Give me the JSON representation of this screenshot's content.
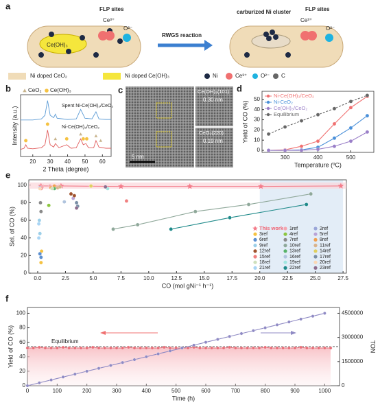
{
  "panel_labels": [
    "a",
    "b",
    "c",
    "d",
    "e",
    "f"
  ],
  "schematic": {
    "flp_left": "FLP sites",
    "ce_left": "Ce³⁺",
    "o_left": "O²⁻",
    "ceoh": "Ce(OH)₃",
    "reaction": "RWGS reaction",
    "cluster": "carburized Ni cluster",
    "flp_right": "FLP sites",
    "ce_right": "Ce³⁺",
    "o_right": "O²⁻",
    "legend": [
      "Ni doped CeO₂",
      "Ni doped Ce(OH)₃",
      "Ni",
      "Ce³⁺",
      "O²⁻",
      "C"
    ]
  },
  "tem": {
    "fringe1": "Ce(OH)₃(101)",
    "d1": "0.30 nm",
    "fringe2": "CeO₂(220)",
    "d2": "0.19 nm",
    "scale": "5 nm"
  },
  "chart_data": [
    {
      "type": "line",
      "x_label": "2 Theta (degree)",
      "y_label": "Intensity (a.u.)",
      "xlim": [
        13,
        65
      ],
      "ylim": [
        0,
        1.05
      ],
      "xticks": [
        20,
        30,
        40,
        50,
        60
      ],
      "series": [
        {
          "name": "Spent Ni-Ce(OH)₃/CeO₂",
          "color": "#5b9bd5",
          "marker": "none",
          "connect": true,
          "x": [
            13,
            20,
            25,
            27,
            28.5,
            30,
            32,
            33,
            34,
            40,
            45,
            47.5,
            50,
            54,
            56.3,
            58,
            62,
            65
          ],
          "values": [
            0.62,
            0.62,
            0.64,
            0.7,
            0.95,
            0.7,
            0.66,
            0.72,
            0.65,
            0.63,
            0.64,
            0.8,
            0.65,
            0.64,
            0.76,
            0.64,
            0.63,
            0.63
          ]
        },
        {
          "name": "Ni-Ce(OH)₃/CeO₂",
          "color": "#e05a5a",
          "marker": "none",
          "connect": true,
          "x": [
            13,
            15,
            16,
            17,
            20,
            25,
            27,
            28.5,
            30,
            32,
            33,
            35,
            39.5,
            42,
            45,
            47.5,
            49,
            50.5,
            52,
            55,
            56.3,
            58,
            62,
            65
          ],
          "values": [
            0.12,
            0.14,
            0.2,
            0.14,
            0.13,
            0.15,
            0.2,
            0.45,
            0.2,
            0.16,
            0.22,
            0.15,
            0.2,
            0.14,
            0.15,
            0.3,
            0.2,
            0.22,
            0.15,
            0.15,
            0.27,
            0.16,
            0.14,
            0.14
          ]
        },
        {
          "name": "CeO₂",
          "color": "#c8b48c",
          "marker": "triangle",
          "connect": false,
          "x": [
            33,
            47.5,
            56.3,
            59
          ],
          "values": [
            0.3,
            0.38,
            0.35,
            0.27
          ]
        },
        {
          "name": "Ce(OH)₃",
          "color": "#f5c242",
          "marker": "circle",
          "connect": false,
          "x": [
            16,
            28.5,
            39.5,
            49,
            51
          ],
          "values": [
            0.27,
            0.55,
            0.3,
            0.3,
            0.3
          ]
        }
      ]
    },
    {
      "type": "line",
      "x_label": "Temperature (ºC)",
      "y_label": "Yield of CO (%)",
      "xlim": [
        230,
        570
      ],
      "ylim": [
        -2,
        58
      ],
      "xticks": [
        300,
        400,
        500
      ],
      "yticks": [
        0,
        10,
        20,
        30,
        40,
        50
      ],
      "series": [
        {
          "name": "Ni-Ce(OH)₃/CeO₂",
          "color": "#f07070",
          "marker": "circle",
          "connect": true,
          "x": [
            250,
            300,
            350,
            400,
            450,
            500,
            550
          ],
          "values": [
            0,
            0.5,
            4,
            9,
            26,
            42,
            53
          ]
        },
        {
          "name": "Ni-CeO₂",
          "color": "#4a90d9",
          "marker": "circle",
          "connect": true,
          "x": [
            250,
            300,
            350,
            400,
            450,
            500,
            550
          ],
          "values": [
            0,
            0,
            0.5,
            3,
            12,
            22,
            34
          ]
        },
        {
          "name": "Ce(OH)₃/CeO₂",
          "color": "#9a7fc8",
          "marker": "circle",
          "connect": true,
          "x": [
            250,
            300,
            350,
            400,
            450,
            500,
            550
          ],
          "values": [
            0,
            0,
            0,
            1,
            4,
            9,
            18
          ]
        },
        {
          "name": "Equilibrium",
          "color": "#666666",
          "marker": "circle",
          "connect": true,
          "dashed": true,
          "x": [
            250,
            300,
            350,
            400,
            450,
            500,
            550
          ],
          "values": [
            16,
            23,
            29,
            35,
            41,
            48,
            54
          ]
        }
      ]
    },
    {
      "type": "scatter",
      "x_label": "CO (mol gNi⁻¹ h⁻¹)",
      "y_label": "Sel. of CO (%)",
      "xlim": [
        -0.8,
        27.8
      ],
      "ylim": [
        0,
        106
      ],
      "highlight_x": [
        20,
        27.5
      ],
      "xticks": [
        {
          "value": 0,
          "label": "0.0"
        },
        2.5,
        {
          "value": 5,
          "label": "5.0"
        },
        7.5,
        {
          "value": 10,
          "label": "10.0"
        },
        12.5,
        {
          "value": 15,
          "label": "15.0"
        },
        17.5,
        {
          "value": 20,
          "label": "20.0"
        },
        22.5,
        {
          "value": 25,
          "label": "25.0"
        },
        27.5
      ],
      "yticks": [
        0,
        20,
        40,
        60,
        80,
        100
      ],
      "series": [
        {
          "name": "This work",
          "color": "#f47c8a",
          "marker": "star",
          "connect": true,
          "x": [
            0.3,
            2.1,
            7.5,
            13.7,
            20.1,
            27.3
          ],
          "values": [
            99,
            99,
            98.5,
            98.5,
            98.5,
            99
          ]
        },
        {
          "name": "1ref",
          "color": "#f4a6b0",
          "marker": "circle",
          "x": [
            0.4,
            1.1
          ],
          "values": [
            98,
            99
          ]
        },
        {
          "name": "2ref",
          "color": "#9aa6d8",
          "marker": "circle",
          "x": [
            0.2
          ],
          "values": [
            97
          ]
        },
        {
          "name": "3ref",
          "color": "#f5c242",
          "marker": "circle",
          "x": [
            0.3,
            0.3,
            0.35
          ],
          "values": [
            12,
            18,
            25
          ]
        },
        {
          "name": "4ref",
          "color": "#8cc63f",
          "marker": "circle",
          "x": [
            1.0
          ],
          "values": [
            77
          ]
        },
        {
          "name": "5ref",
          "color": "#b9a3d6",
          "marker": "circle",
          "x": [
            3.2
          ],
          "values": [
            85
          ]
        },
        {
          "name": "6ref",
          "color": "#5b8fd1",
          "marker": "circle",
          "x": [
            0.2,
            0.3
          ],
          "values": [
            22,
            18
          ]
        },
        {
          "name": "7ref",
          "color": "#8a8a8a",
          "marker": "circle",
          "x": [
            0.25,
            0.3
          ],
          "values": [
            80,
            70
          ]
        },
        {
          "name": "8ref",
          "color": "#f0a050",
          "marker": "circle",
          "x": [
            1.2,
            1.5
          ],
          "values": [
            97,
            99
          ]
        },
        {
          "name": "9ref",
          "color": "#9ccfe8",
          "marker": "circle",
          "x": [
            0.15,
            0.2
          ],
          "values": [
            60,
            45
          ]
        },
        {
          "name": "10ref",
          "color": "#8fa89a",
          "marker": "circle",
          "connect": true,
          "x": [
            6.8,
            9,
            14.2,
            19,
            24.6
          ],
          "values": [
            50,
            55,
            70,
            78,
            90
          ]
        },
        {
          "name": "11ref",
          "color": "#d9b38c",
          "marker": "circle",
          "x": [
            1.8,
            2.0
          ],
          "values": [
            97,
            98
          ]
        },
        {
          "name": "12ref",
          "color": "#a0522d",
          "marker": "circle",
          "x": [
            3.0,
            3.3
          ],
          "values": [
            90,
            88
          ]
        },
        {
          "name": "13ref",
          "color": "#58b368",
          "marker": "circle",
          "x": [
            1.5
          ],
          "values": [
            96
          ]
        },
        {
          "name": "14ref",
          "color": "#e0d060",
          "marker": "circle",
          "x": [
            4.8
          ],
          "values": [
            99
          ]
        },
        {
          "name": "15ref",
          "color": "#f08080",
          "marker": "circle",
          "x": [
            8.0,
            0.3
          ],
          "values": [
            82,
            96
          ]
        },
        {
          "name": "16ref",
          "color": "#b0c4de",
          "marker": "circle",
          "x": [
            2.4
          ],
          "values": [
            81
          ]
        },
        {
          "name": "17ref",
          "color": "#7a8fa6",
          "marker": "circle",
          "x": [
            3.5,
            3.6
          ],
          "values": [
            80,
            76
          ]
        },
        {
          "name": "18ref",
          "color": "#cfe0bd",
          "marker": "circle",
          "x": [
            1.3
          ],
          "values": [
            96
          ]
        },
        {
          "name": "19ref",
          "color": "#a0e6e0",
          "marker": "circle",
          "x": [
            6.3
          ],
          "values": [
            96
          ]
        },
        {
          "name": "20ref",
          "color": "#fbd7b5",
          "marker": "circle",
          "x": [
            0.2
          ],
          "values": [
            96
          ]
        },
        {
          "name": "21ref",
          "color": "#a9d5f5",
          "marker": "circle",
          "x": [
            0.1,
            0.1
          ],
          "values": [
            56,
            40
          ]
        },
        {
          "name": "22ref",
          "color": "#1f8a8a",
          "marker": "circle",
          "connect": true,
          "x": [
            12,
            17.3,
            24.2
          ],
          "values": [
            50,
            63,
            78
          ]
        },
        {
          "name": "23ref",
          "color": "#8e6d8e",
          "marker": "circle",
          "x": [
            6.1,
            3.5
          ],
          "values": [
            98,
            74
          ]
        }
      ]
    },
    {
      "type": "line",
      "x_label": "Time (h)",
      "y_label": "Yield of CO (%)",
      "y2_label": "TON",
      "xlim": [
        0,
        1050
      ],
      "ylim": [
        0,
        108
      ],
      "y2lim": [
        0,
        4860000
      ],
      "xticks": [
        0,
        100,
        200,
        300,
        400,
        500,
        600,
        700,
        800,
        900,
        1000
      ],
      "yticks": [
        0,
        20,
        40,
        60,
        80,
        100
      ],
      "y2ticks": [
        0,
        1500000,
        3000000,
        4500000
      ],
      "reference_line": {
        "label": "Equilibrium",
        "value": 54
      },
      "series": [
        {
          "color": "#e8707a",
          "marker": "circle",
          "connect": true,
          "x": [
            0,
            20,
            40,
            60,
            80,
            100,
            120,
            140,
            160,
            180,
            200,
            220,
            240,
            260,
            280,
            300,
            320,
            340,
            360,
            380,
            400,
            420,
            440,
            460,
            480,
            500,
            520,
            540,
            560,
            580,
            600,
            620,
            640,
            660,
            680,
            700,
            720,
            740,
            760,
            780,
            800,
            820,
            840,
            860,
            880,
            900,
            920,
            940,
            960,
            980,
            1000,
            1020
          ],
          "values": [
            52,
            52,
            53,
            52,
            52,
            52,
            53,
            52,
            52,
            52,
            52,
            53,
            52,
            52,
            52,
            52,
            52,
            53,
            52,
            52,
            52,
            52,
            52,
            53,
            52,
            52,
            52,
            52,
            53,
            52,
            52,
            52,
            52,
            52,
            53,
            52,
            52,
            52,
            52,
            52,
            53,
            52,
            52,
            52,
            52,
            52,
            53,
            52,
            52,
            52,
            52,
            52
          ]
        },
        {
          "color": "#8f8ac4",
          "marker": "circle",
          "connect": true,
          "axis": "y2",
          "x": [
            0,
            40,
            80,
            120,
            160,
            200,
            240,
            280,
            320,
            360,
            400,
            440,
            480,
            520,
            560,
            600,
            640,
            680,
            720,
            760,
            800,
            840,
            880,
            920,
            960,
            1000
          ],
          "values": [
            0,
            180000,
            360000,
            540000,
            720000,
            900000,
            1080000,
            1260000,
            1440000,
            1620000,
            1800000,
            1980000,
            2160000,
            2340000,
            2520000,
            2700000,
            2880000,
            3060000,
            3240000,
            3420000,
            3600000,
            3780000,
            3960000,
            4140000,
            4320000,
            4500000
          ]
        }
      ]
    }
  ]
}
